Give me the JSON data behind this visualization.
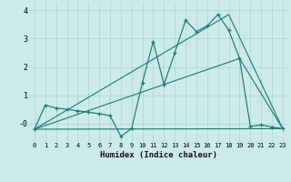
{
  "xlabel": "Humidex (Indice chaleur)",
  "bg_color": "#cceaea",
  "line_color": "#1a7a6e",
  "grid_color": "#aad4d4",
  "xlim": [
    -0.5,
    23.5
  ],
  "ylim": [
    -0.65,
    4.3
  ],
  "xticks": [
    0,
    1,
    2,
    3,
    4,
    5,
    6,
    7,
    8,
    9,
    10,
    11,
    12,
    13,
    14,
    15,
    16,
    17,
    18,
    19,
    20,
    21,
    22,
    23
  ],
  "yticks": [
    0,
    1,
    2,
    3,
    4
  ],
  "ytick_labels": [
    "-0",
    "1",
    "2",
    "3",
    "4"
  ],
  "line1_x": [
    0,
    1,
    2,
    3,
    4,
    5,
    6,
    7,
    8,
    9,
    10,
    11,
    12,
    13,
    14,
    15,
    16,
    17,
    18,
    19,
    20,
    21,
    22,
    23
  ],
  "line1_y": [
    -0.2,
    0.65,
    0.55,
    0.5,
    0.45,
    0.4,
    0.35,
    0.28,
    -0.45,
    -0.18,
    1.45,
    2.9,
    1.38,
    2.5,
    3.65,
    3.25,
    3.45,
    3.85,
    3.3,
    2.3,
    -0.1,
    -0.05,
    -0.12,
    -0.18
  ],
  "line2_x": [
    0,
    19,
    23
  ],
  "line2_y": [
    -0.2,
    2.3,
    -0.18
  ],
  "line3_x": [
    0,
    18,
    23
  ],
  "line3_y": [
    -0.2,
    3.85,
    -0.18
  ],
  "line4_x": [
    0,
    23
  ],
  "line4_y": [
    -0.2,
    -0.18
  ]
}
